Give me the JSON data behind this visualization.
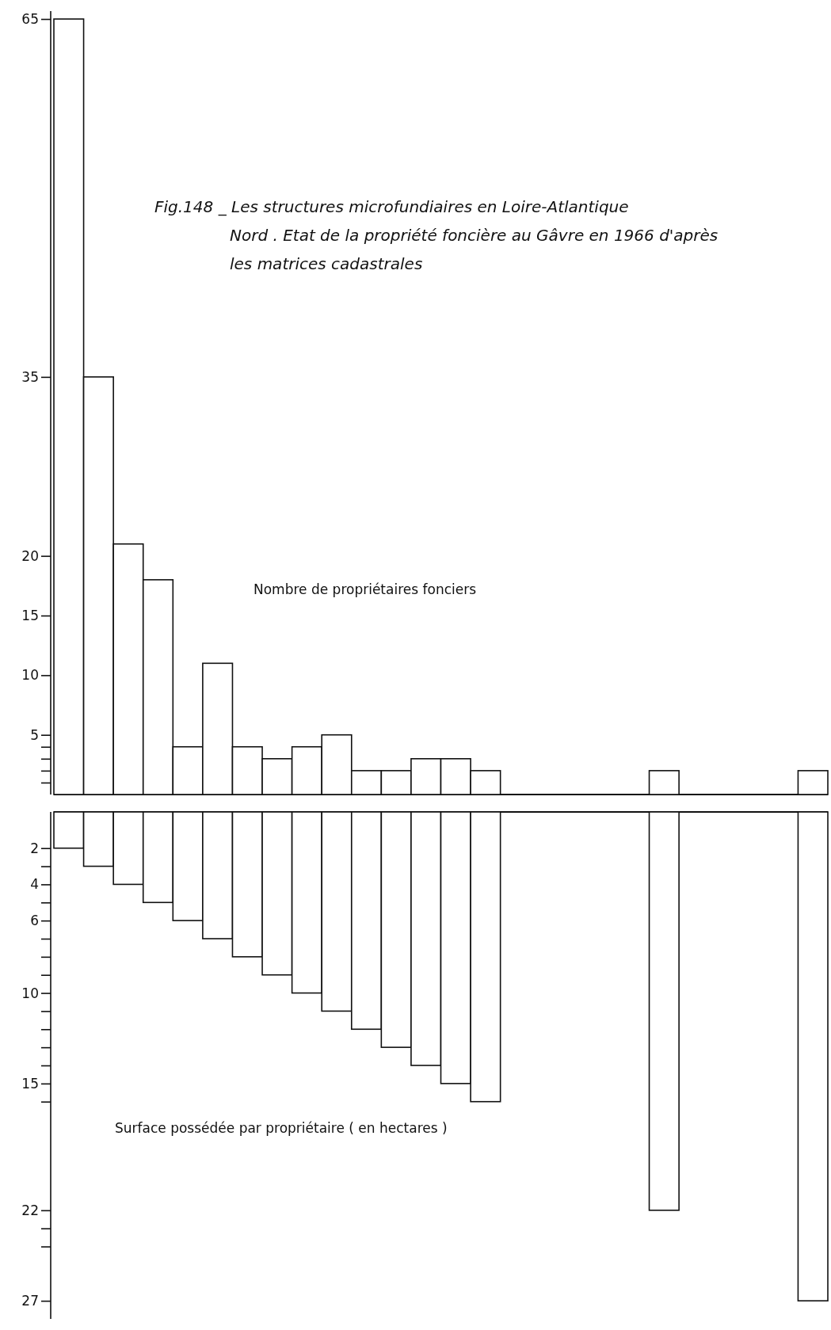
{
  "chart_data": [
    {
      "type": "bar",
      "title": "Fig.148  _ Les structures microfundiaires en Loire-Atlantique Nord . Etat de la propriété foncière au Gâvre en 1966 d'après les matrices cadastrales",
      "categories": [
        null,
        null,
        null,
        null,
        null,
        null,
        null,
        null,
        null,
        null,
        null,
        null,
        null,
        null,
        null,
        null,
        null,
        null,
        null,
        null,
        null,
        null,
        null,
        null,
        null,
        null
      ],
      "values": [
        65,
        35,
        21,
        18,
        4,
        11,
        4,
        3,
        4,
        5,
        2,
        2,
        3,
        3,
        2,
        null,
        null,
        null,
        null,
        null,
        2,
        null,
        null,
        null,
        null,
        2
      ],
      "color": "#ffffff",
      "ylim": [
        0,
        65
      ],
      "yticks": [
        {
          "value": 1,
          "label": null
        },
        {
          "value": 2,
          "label": null
        },
        {
          "value": 3,
          "label": null
        },
        {
          "value": 4,
          "label": null
        },
        5,
        10,
        15,
        20,
        35,
        65
      ],
      "tick_labels": "y",
      "annotations": [
        "Nombre de propriétaires fonciers"
      ]
    },
    {
      "type": "bar",
      "categories": [
        null,
        null,
        null,
        null,
        null,
        null,
        null,
        null,
        null,
        null,
        null,
        null,
        null,
        null,
        null,
        null,
        null,
        null,
        null,
        null,
        null,
        null,
        null,
        null,
        null,
        null
      ],
      "values": [
        2,
        3,
        4,
        5,
        6,
        7,
        8,
        9,
        10,
        11,
        12,
        13,
        14,
        15,
        16,
        null,
        null,
        null,
        null,
        null,
        22,
        null,
        null,
        null,
        null,
        27
      ],
      "color": "#ffffff",
      "ylim": [
        28,
        0
      ],
      "yticks": [
        2,
        {
          "value": 3,
          "label": null
        },
        4,
        {
          "value": 5,
          "label": null
        },
        6,
        {
          "value": 7,
          "label": null
        },
        {
          "value": 8,
          "label": null
        },
        {
          "value": 9,
          "label": null
        },
        10,
        {
          "value": 11,
          "label": null
        },
        {
          "value": 12,
          "label": null
        },
        {
          "value": 13,
          "label": null
        },
        {
          "value": 14,
          "label": null
        },
        15,
        {
          "value": 16,
          "label": null
        },
        22,
        {
          "value": 23,
          "label": null
        },
        {
          "value": 24,
          "label": null
        },
        27
      ],
      "tick_labels": "y",
      "annotations": [
        "Surface possédée par propriétaire ( en hectares )"
      ]
    }
  ]
}
